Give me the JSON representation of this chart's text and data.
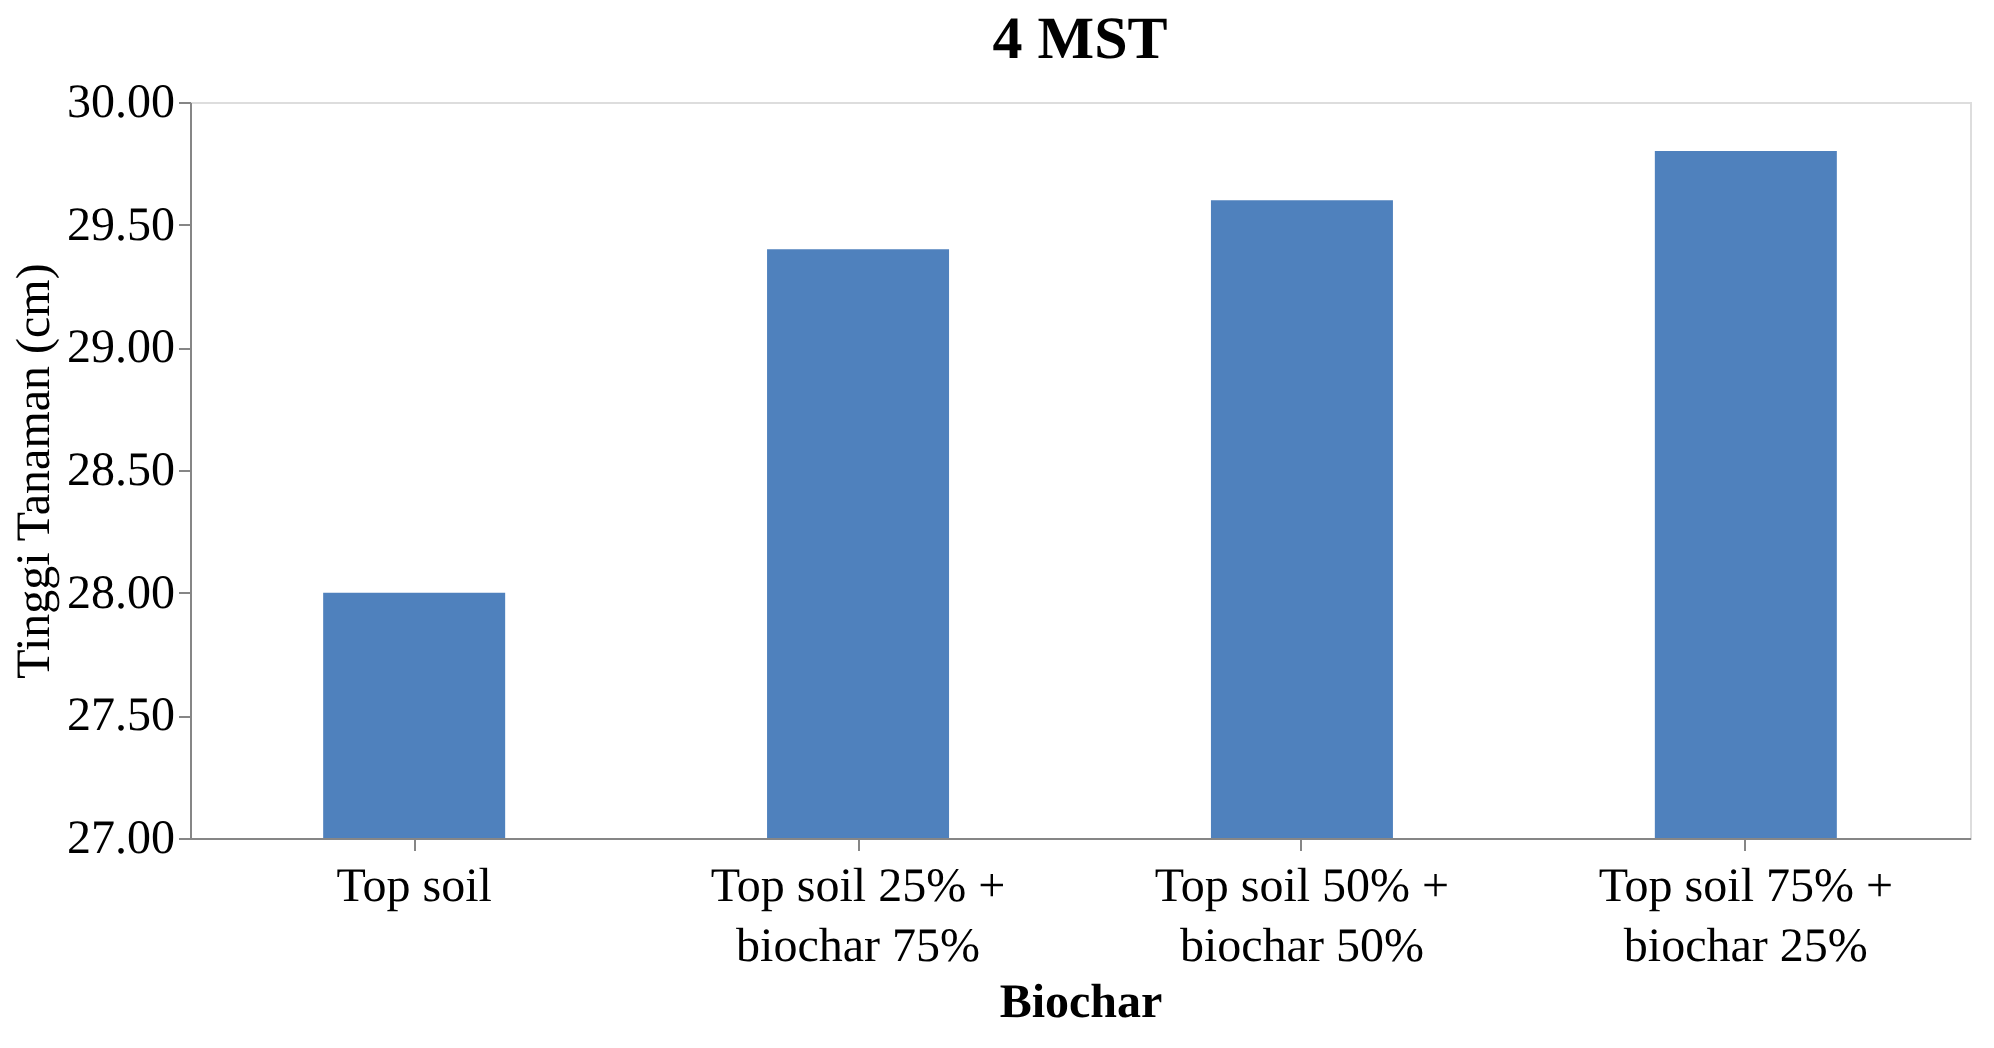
{
  "chart_data": {
    "type": "bar",
    "title": "4 MST",
    "xlabel": "Biochar",
    "ylabel": "Tinggi Tanaman (cm)",
    "categories": [
      "Top soil",
      "Top soil 25% +\nbiochar 75%",
      "Top soil 50% +\nbiochar 50%",
      "Top soil 75% +\nbiochar 25%"
    ],
    "values": [
      28.0,
      29.4,
      29.6,
      29.8
    ],
    "color": "#4f81bd",
    "ylim": [
      27,
      30
    ],
    "yticks": [
      {
        "value": 27,
        "label": "27.00"
      },
      {
        "value": 27.5,
        "label": "27.50"
      },
      {
        "value": 28,
        "label": "28.00"
      },
      {
        "value": 28.5,
        "label": "28.50"
      },
      {
        "value": 29,
        "label": "29.00"
      },
      {
        "value": 29.5,
        "label": "29.50"
      },
      {
        "value": 30,
        "label": "30.00"
      }
    ],
    "grid": false
  }
}
